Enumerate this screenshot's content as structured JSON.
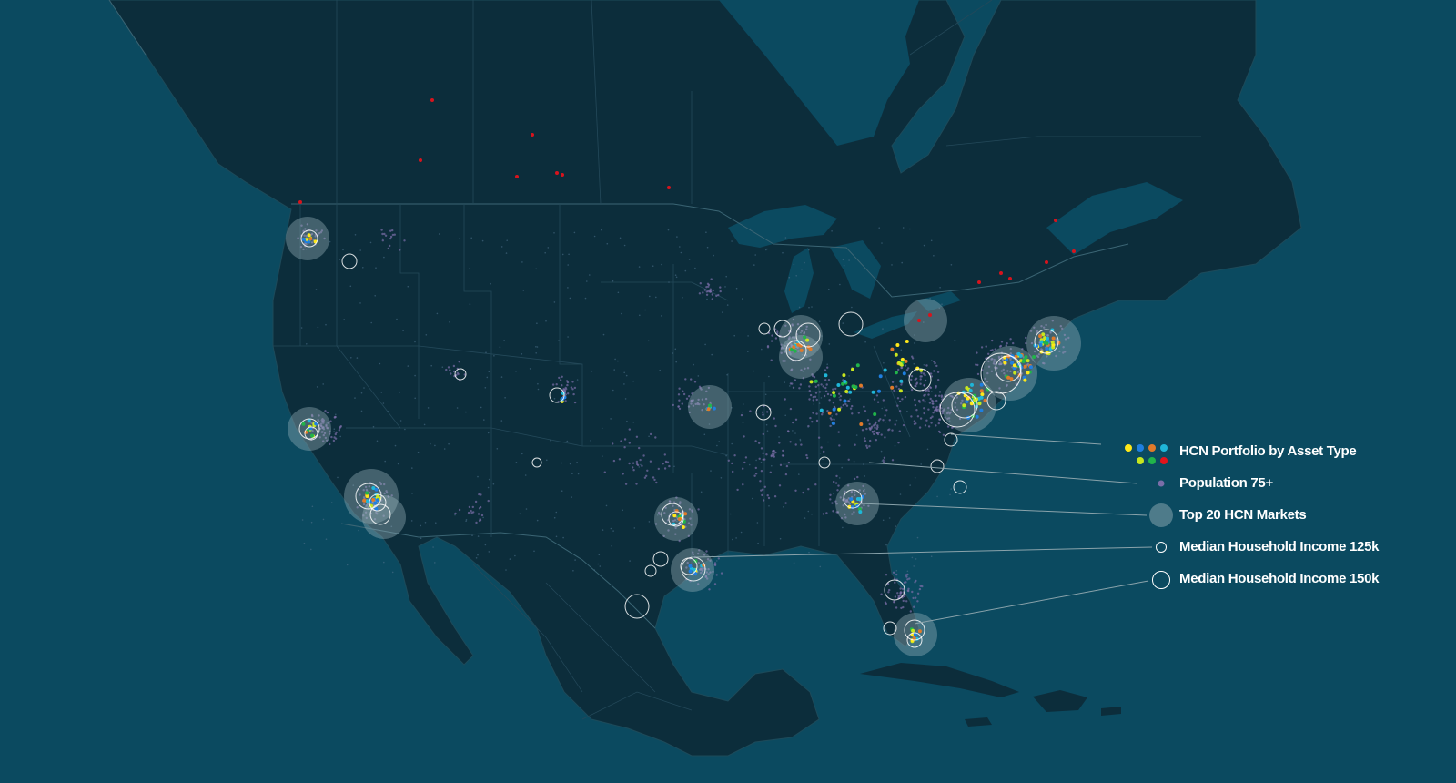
{
  "map": {
    "region": "North America",
    "colors": {
      "ocean": "#0b4a60",
      "land": "#0c2d3b",
      "land_border": "#335a6a",
      "population_dot": "#7a6ea8",
      "market_circle": "#9fb8bf",
      "income_ring": "#ffffff",
      "canada_portfolio": "#d7141d"
    }
  },
  "legend": {
    "items": [
      {
        "label": "HCN Portfolio by Asset Type",
        "symbol": "asset-type-dots",
        "dot_colors": [
          "#ffe81a",
          "#1f7fe0",
          "#e07a2a",
          "#1fb6d8",
          "#c8e61f",
          "#21b44a",
          "#e3141b"
        ]
      },
      {
        "label": "Population 75+",
        "symbol": "population-dot"
      },
      {
        "label": "Top 20 HCN Markets",
        "symbol": "market-circle"
      },
      {
        "label": "Median Household Income 125k",
        "symbol": "income-ring-small"
      },
      {
        "label": "Median Household Income 150k",
        "symbol": "income-ring-large"
      }
    ]
  }
}
